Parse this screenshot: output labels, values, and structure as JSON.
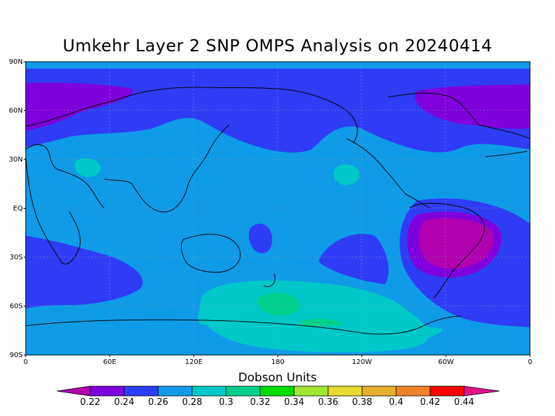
{
  "title": "Umkehr Layer 2 SNP OMPS Analysis on 20240414",
  "units_label": "Dobson Units",
  "lat_ticks": [
    "90N",
    "60N",
    "30N",
    "EQ",
    "30S",
    "60S",
    "90S"
  ],
  "lon_ticks": [
    "0",
    "60E",
    "120E",
    "180",
    "120W",
    "60W",
    "0"
  ],
  "colorbar": {
    "colors": [
      "#b000b0",
      "#7f00dc",
      "#2f3cf5",
      "#0f9be8",
      "#00c8c8",
      "#00d08c",
      "#00dc00",
      "#a0e632",
      "#e6dc32",
      "#e6af2d",
      "#f08228",
      "#fa0000",
      "#e0148c"
    ],
    "labels": [
      "0.22",
      "0.24",
      "0.26",
      "0.28",
      "0.3",
      "0.32",
      "0.34",
      "0.36",
      "0.38",
      "0.4",
      "0.42",
      "0.44"
    ]
  }
}
